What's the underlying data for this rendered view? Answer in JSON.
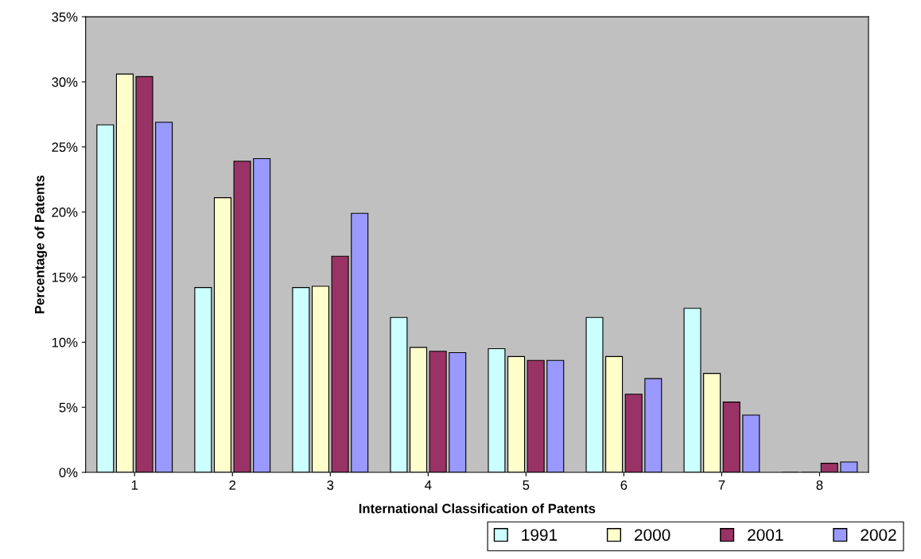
{
  "chart_data": {
    "type": "bar",
    "xlabel": "International Classification of Patents",
    "ylabel": "Percentage of Patents",
    "categories": [
      "1",
      "2",
      "3",
      "4",
      "5",
      "6",
      "7",
      "8"
    ],
    "series": [
      {
        "name": "1991",
        "color": "#ccffff",
        "values": [
          26.7,
          14.2,
          14.2,
          11.9,
          9.5,
          11.9,
          12.6,
          0
        ]
      },
      {
        "name": "2000",
        "color": "#ffffcc",
        "values": [
          30.6,
          21.1,
          14.3,
          9.6,
          8.9,
          8.9,
          7.6,
          0
        ]
      },
      {
        "name": "2001",
        "color": "#993366",
        "values": [
          30.4,
          23.9,
          16.6,
          9.3,
          8.6,
          6.0,
          5.4,
          0.7
        ]
      },
      {
        "name": "2002",
        "color": "#9999ff",
        "values": [
          26.9,
          24.1,
          19.9,
          9.2,
          8.6,
          7.2,
          4.4,
          0.8
        ]
      }
    ],
    "ylim": [
      0,
      35
    ],
    "yticks": [
      {
        "value": 0,
        "label": "0%"
      },
      {
        "value": 5,
        "label": "5%"
      },
      {
        "value": 10,
        "label": "10%"
      },
      {
        "value": 15,
        "label": "15%"
      },
      {
        "value": 20,
        "label": "20%"
      },
      {
        "value": 25,
        "label": "25%"
      },
      {
        "value": 30,
        "label": "30%"
      },
      {
        "value": 35,
        "label": "35%"
      }
    ],
    "grid": false,
    "legend": "bottom right"
  }
}
